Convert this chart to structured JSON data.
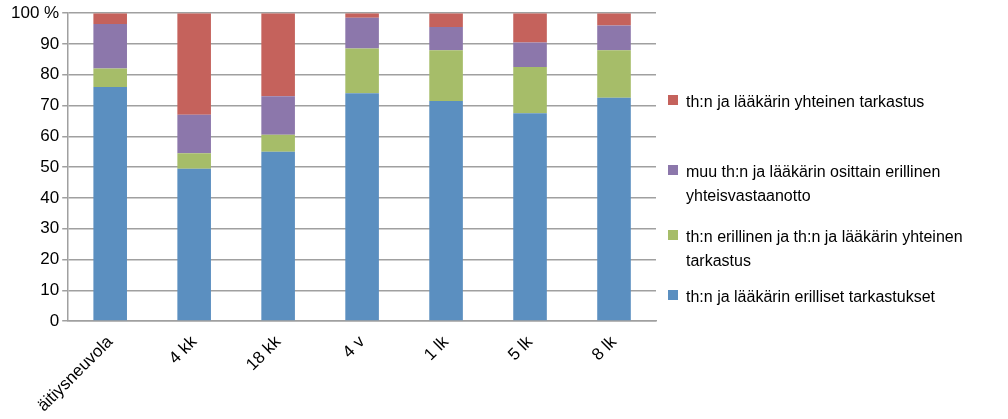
{
  "chart_data": {
    "type": "bar",
    "stacked": true,
    "categories": [
      "äitiysneuvola",
      "4 kk",
      "18 kk",
      "4 v",
      "1 lk",
      "5 lk",
      "8 lk"
    ],
    "series": [
      {
        "name": "th:n ja lääkärin erilliset tarkastukset",
        "color": "#5b8fc0",
        "values": [
          76,
          49.5,
          55,
          74,
          71.5,
          67.5,
          72.5
        ]
      },
      {
        "name": "th:n erillinen ja th:n ja lääkärin yhteinen tarkastus",
        "color": "#a6bd69",
        "values": [
          6,
          5,
          5.5,
          14.5,
          16.5,
          15,
          15.5
        ]
      },
      {
        "name": "muu th:n ja lääkärin osittain erillinen yhteisvastaanotto",
        "color": "#8c77ab",
        "values": [
          14.5,
          12.5,
          12.5,
          10,
          7.5,
          8,
          8
        ]
      },
      {
        "name": "th:n ja lääkärin yhteinen tarkastus",
        "color": "#c5625c",
        "values": [
          3.5,
          33,
          27,
          1.5,
          4.5,
          9.5,
          4
        ]
      }
    ],
    "ylim": [
      0,
      100
    ],
    "yticks": [
      0,
      10,
      20,
      30,
      40,
      50,
      60,
      70,
      80,
      90,
      {
        "value": 100,
        "label": "100 %"
      }
    ],
    "grid": "y",
    "legend": "right"
  }
}
